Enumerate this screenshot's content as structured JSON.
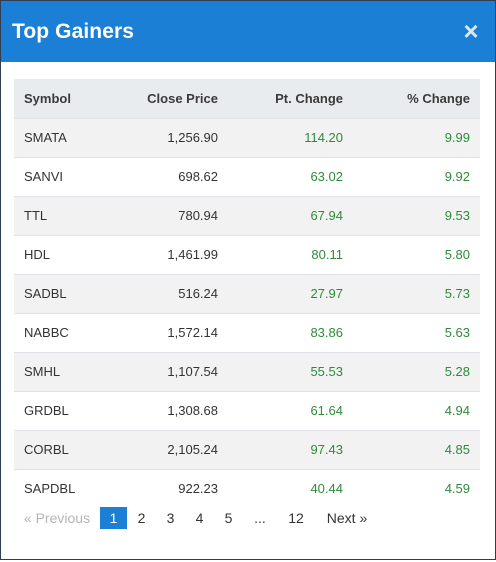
{
  "modal": {
    "title": "Top Gainers",
    "close_symbol": "×"
  },
  "table": {
    "headers": {
      "symbol": "Symbol",
      "close_price": "Close Price",
      "pt_change": "Pt. Change",
      "pct_change": "% Change"
    },
    "rows": [
      {
        "symbol": "SMATA",
        "close_price": "1,256.90",
        "pt_change": "114.20",
        "pct_change": "9.99"
      },
      {
        "symbol": "SANVI",
        "close_price": "698.62",
        "pt_change": "63.02",
        "pct_change": "9.92"
      },
      {
        "symbol": "TTL",
        "close_price": "780.94",
        "pt_change": "67.94",
        "pct_change": "9.53"
      },
      {
        "symbol": "HDL",
        "close_price": "1,461.99",
        "pt_change": "80.11",
        "pct_change": "5.80"
      },
      {
        "symbol": "SADBL",
        "close_price": "516.24",
        "pt_change": "27.97",
        "pct_change": "5.73"
      },
      {
        "symbol": "NABBC",
        "close_price": "1,572.14",
        "pt_change": "83.86",
        "pct_change": "5.63"
      },
      {
        "symbol": "SMHL",
        "close_price": "1,107.54",
        "pt_change": "55.53",
        "pct_change": "5.28"
      },
      {
        "symbol": "GRDBL",
        "close_price": "1,308.68",
        "pt_change": "61.64",
        "pct_change": "4.94"
      },
      {
        "symbol": "CORBL",
        "close_price": "2,105.24",
        "pt_change": "97.43",
        "pct_change": "4.85"
      },
      {
        "symbol": "SAPDBL",
        "close_price": "922.23",
        "pt_change": "40.44",
        "pct_change": "4.59"
      }
    ]
  },
  "pagination": {
    "prev": "« Previous",
    "pages": [
      "1",
      "2",
      "3",
      "4",
      "5"
    ],
    "ellipsis": "...",
    "last": "12",
    "next": "Next »",
    "current": "1"
  },
  "colors": {
    "header_blue": "#1a7fd5",
    "gain_green": "#2e8b3a"
  }
}
